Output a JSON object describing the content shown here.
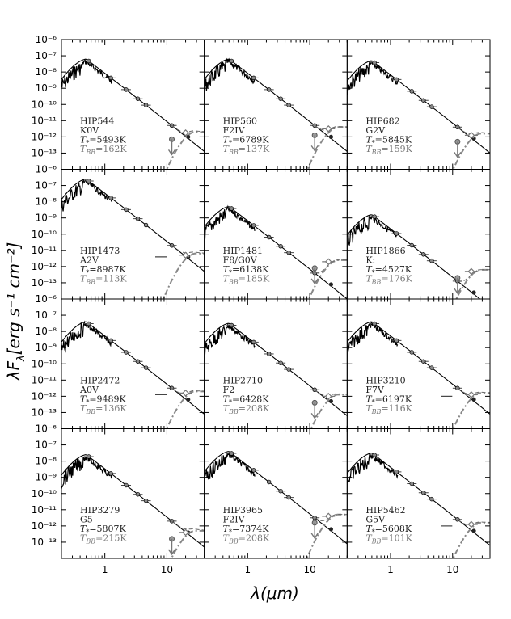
{
  "figure": {
    "ylabel_main": "λF",
    "ylabel_sub": "λ",
    "ylabel_units": "[erg s⁻¹ cm⁻²]",
    "xlabel": "λ(μm)"
  },
  "chart_data": {
    "type": "line",
    "grid": false,
    "x_scale": "log",
    "y_scale": "log",
    "xlim": [
      0.2,
      40
    ],
    "ylim": [
      1e-14,
      1e-06
    ],
    "x_ticks": [
      {
        "value": 1,
        "label": "1"
      },
      {
        "value": 10,
        "label": "10"
      }
    ],
    "y_ticks": [
      {
        "value": -6,
        "label": "10⁻⁶"
      },
      {
        "value": -7,
        "label": "10⁻⁷"
      },
      {
        "value": -8,
        "label": "10⁻⁸"
      },
      {
        "value": -9,
        "label": "10⁻⁹"
      },
      {
        "value": -10,
        "label": "10⁻¹⁰"
      },
      {
        "value": -11,
        "label": "10⁻¹¹"
      },
      {
        "value": -12,
        "label": "10⁻¹²"
      },
      {
        "value": -13,
        "label": "10⁻¹³"
      }
    ],
    "teff_prefix": "T",
    "teff_sub": "*",
    "tbb_prefix": "T",
    "tbb_sub": "BB",
    "panels": [
      {
        "name": "HIP544",
        "spectral_type": "K0V",
        "t_star": "=5493K",
        "t_bb": "=162K",
        "peak": -7.2,
        "disk_peak": -11.7,
        "excess_pt": 20,
        "excess_val": -11.75,
        "upper_limit": true
      },
      {
        "name": "HIP560",
        "spectral_type": "F2IV",
        "t_star": "=6789K",
        "t_bb": "=137K",
        "peak": -7.2,
        "disk_peak": -11.4,
        "excess_pt": 20,
        "excess_val": -11.5,
        "upper_limit": true
      },
      {
        "name": "HIP682",
        "spectral_type": "G2V",
        "t_star": "=5845K",
        "t_bb": "=159K",
        "peak": -7.3,
        "disk_peak": -11.8,
        "excess_pt": 20,
        "excess_val": -11.9,
        "upper_limit": true
      },
      {
        "name": "HIP1473",
        "spectral_type": "A2V",
        "t_star": "=8987K",
        "t_bb": "=113K",
        "peak": -6.6,
        "disk_peak": -11.2,
        "excess_pt": 20,
        "excess_val": -11.3,
        "upper_limit": false
      },
      {
        "name": "HIP1481",
        "spectral_type": "F8/G0V",
        "t_star": "=6138K",
        "t_bb": "=185K",
        "peak": -8.3,
        "disk_peak": -11.6,
        "excess_pt": 20,
        "excess_val": -11.7,
        "upper_limit": true
      },
      {
        "name": "HIP1866",
        "spectral_type": "K:",
        "t_star": "=4527K",
        "t_bb": "=176K",
        "peak": -8.8,
        "disk_peak": -12.2,
        "excess_pt": 20,
        "excess_val": -12.3,
        "upper_limit": true
      },
      {
        "name": "HIP2472",
        "spectral_type": "A0V",
        "t_star": "=9489K",
        "t_bb": "=136K",
        "peak": -7.4,
        "disk_peak": -11.7,
        "excess_pt": 20,
        "excess_val": -11.8,
        "upper_limit": false
      },
      {
        "name": "HIP2710",
        "spectral_type": "F2",
        "t_star": "=6428K",
        "t_bb": "=208K",
        "peak": -7.5,
        "disk_peak": -11.9,
        "excess_pt": 20,
        "excess_val": -12.0,
        "upper_limit": true
      },
      {
        "name": "HIP3210",
        "spectral_type": "F7V",
        "t_star": "=6197K",
        "t_bb": "=116K",
        "peak": -7.4,
        "disk_peak": -11.8,
        "excess_pt": 20,
        "excess_val": -11.9,
        "upper_limit": false
      },
      {
        "name": "HIP3279",
        "spectral_type": "G5",
        "t_star": "=5807K",
        "t_bb": "=215K",
        "peak": -7.6,
        "disk_peak": -12.3,
        "excess_pt": 20,
        "excess_val": -12.4,
        "upper_limit": true
      },
      {
        "name": "HIP3965",
        "spectral_type": "F2IV",
        "t_star": "=7374K",
        "t_bb": "=208K",
        "peak": -7.4,
        "disk_peak": -11.3,
        "excess_pt": 20,
        "excess_val": -11.4,
        "upper_limit": true
      },
      {
        "name": "HIP5462",
        "spectral_type": "G5V",
        "t_star": "=5608K",
        "t_bb": "=101K",
        "peak": -7.5,
        "disk_peak": -11.8,
        "excess_pt": 20,
        "excess_val": -11.9,
        "upper_limit": false
      }
    ]
  }
}
